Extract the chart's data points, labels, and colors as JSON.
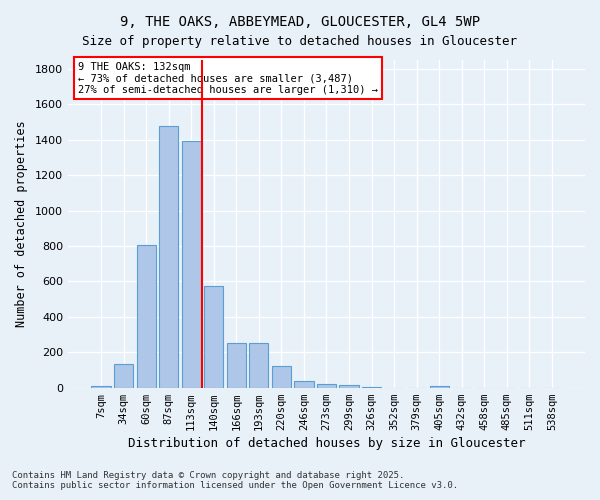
{
  "title_line1": "9, THE OAKS, ABBEYMEAD, GLOUCESTER, GL4 5WP",
  "title_line2": "Size of property relative to detached houses in Gloucester",
  "xlabel": "Distribution of detached houses by size in Gloucester",
  "ylabel": "Number of detached properties",
  "categories": [
    "7sqm",
    "34sqm",
    "60sqm",
    "87sqm",
    "113sqm",
    "140sqm",
    "166sqm",
    "193sqm",
    "220sqm",
    "246sqm",
    "273sqm",
    "299sqm",
    "326sqm",
    "352sqm",
    "379sqm",
    "405sqm",
    "432sqm",
    "458sqm",
    "485sqm",
    "511sqm",
    "538sqm"
  ],
  "values": [
    10,
    135,
    805,
    1475,
    1395,
    575,
    253,
    253,
    120,
    35,
    22,
    15,
    5,
    0,
    0,
    12,
    0,
    0,
    0,
    0,
    0
  ],
  "bar_color": "#aec6e8",
  "bar_edge_color": "#5a9fd4",
  "background_color": "#e8f0f8",
  "grid_color": "#ffffff",
  "vline_x": 4.5,
  "vline_color": "red",
  "annotation_text": "9 THE OAKS: 132sqm\n← 73% of detached houses are smaller (3,487)\n27% of semi-detached houses are larger (1,310) →",
  "annotation_box_color": "white",
  "annotation_box_edge": "red",
  "ylim": [
    0,
    1850
  ],
  "yticks": [
    0,
    200,
    400,
    600,
    800,
    1000,
    1200,
    1400,
    1600,
    1800
  ],
  "footer_line1": "Contains HM Land Registry data © Crown copyright and database right 2025.",
  "footer_line2": "Contains public sector information licensed under the Open Government Licence v3.0."
}
